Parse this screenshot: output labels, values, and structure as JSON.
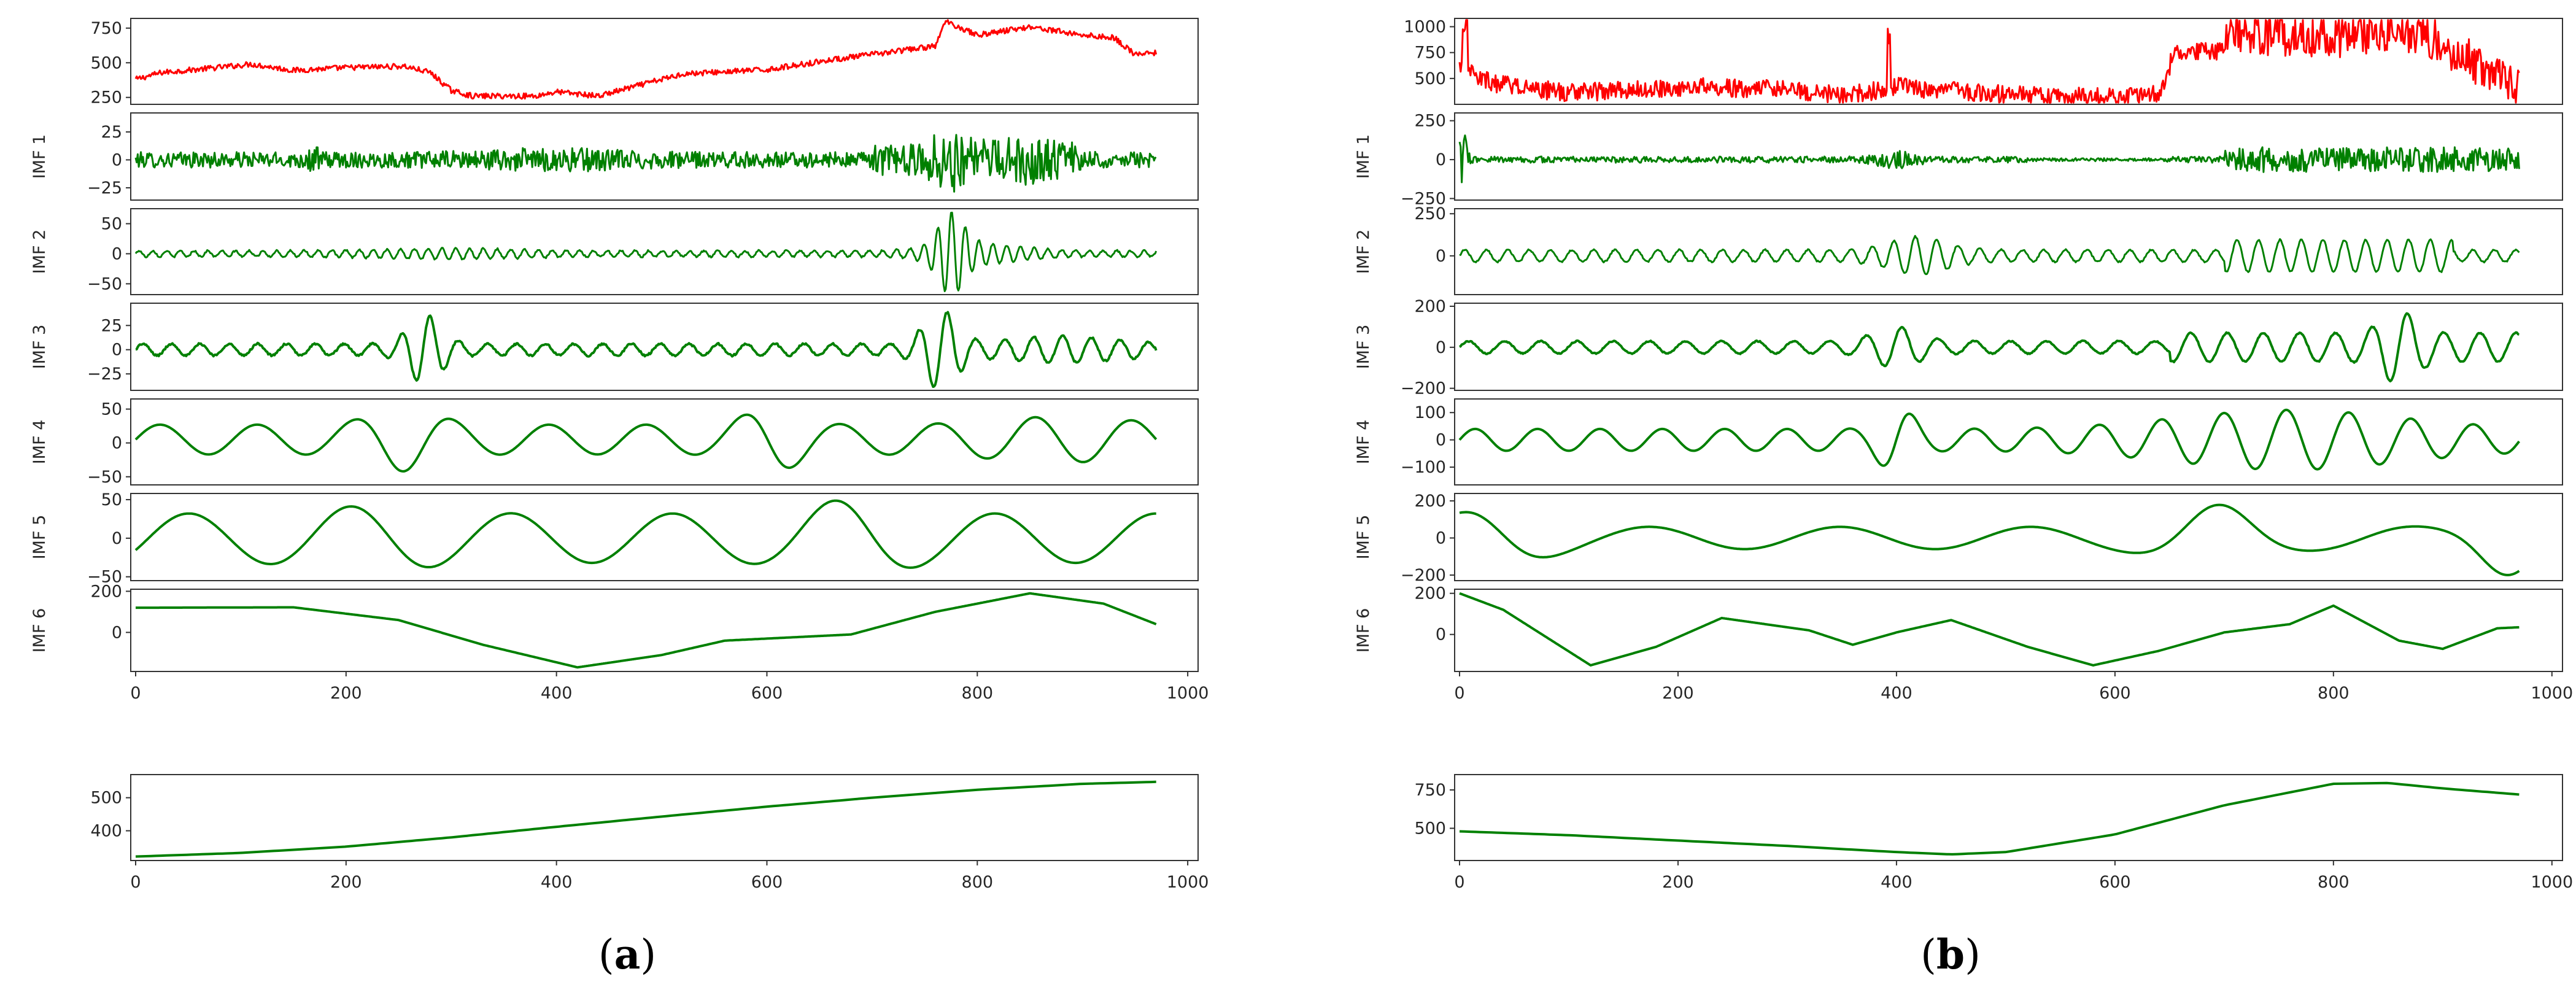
{
  "figure": {
    "caption_a": {
      "open": "(",
      "letter": "a",
      "close": ")"
    },
    "caption_b": {
      "open": "(",
      "letter": "b",
      "close": ")"
    }
  },
  "colors": {
    "signal": "#ff0000",
    "imf": "#008000"
  },
  "chart_data": [
    {
      "id": "a",
      "type": "line",
      "title": "",
      "x_ticks": [
        0,
        200,
        400,
        600,
        800,
        1000
      ],
      "x_range": [
        0,
        970
      ],
      "panels": [
        {
          "kind": "signal",
          "ylabel": "",
          "ylim": [
            200,
            820
          ],
          "yticks": [
            250,
            500,
            750
          ],
          "ytick_labels": [
            "250",
            "500",
            "750"
          ],
          "color": "#ff0000"
        },
        {
          "kind": "imf",
          "ylabel": "IMF 1",
          "ylim": [
            -36,
            42
          ],
          "yticks": [
            -25,
            0,
            25
          ],
          "ytick_labels": [
            "−25",
            "0",
            "25"
          ],
          "color": "#008000"
        },
        {
          "kind": "imf",
          "ylabel": "IMF 2",
          "ylim": [
            -68,
            75
          ],
          "yticks": [
            -50,
            0,
            50
          ],
          "ytick_labels": [
            "−50",
            "0",
            "50"
          ],
          "color": "#008000"
        },
        {
          "kind": "imf",
          "ylabel": "IMF 3",
          "ylim": [
            -42,
            48
          ],
          "yticks": [
            -25,
            0,
            25
          ],
          "ytick_labels": [
            "−25",
            "0",
            "25"
          ],
          "color": "#008000"
        },
        {
          "kind": "imf",
          "ylabel": "IMF 4",
          "ylim": [
            -62,
            65
          ],
          "yticks": [
            -50,
            0,
            50
          ],
          "ytick_labels": [
            "−50",
            "0",
            "50"
          ],
          "color": "#008000"
        },
        {
          "kind": "imf",
          "ylabel": "IMF 5",
          "ylim": [
            -55,
            58
          ],
          "yticks": [
            -50,
            0,
            50
          ],
          "ytick_labels": [
            "−50",
            "0",
            "50"
          ],
          "color": "#008000"
        },
        {
          "kind": "imf",
          "ylabel": "IMF 6",
          "ylim": [
            -190,
            210
          ],
          "yticks": [
            0,
            200
          ],
          "ytick_labels": [
            "0",
            "200"
          ],
          "color": "#008000"
        },
        {
          "kind": "residual",
          "ylabel": "",
          "ylim": [
            310,
            570
          ],
          "yticks": [
            400,
            500
          ],
          "ytick_labels": [
            "400",
            "500"
          ],
          "color": "#008000",
          "x": [
            0,
            100,
            200,
            300,
            400,
            500,
            600,
            700,
            800,
            900,
            970
          ],
          "y": [
            322,
            333,
            352,
            380,
            412,
            443,
            473,
            500,
            524,
            542,
            548
          ]
        }
      ]
    },
    {
      "id": "b",
      "type": "line",
      "title": "",
      "x_ticks": [
        0,
        200,
        400,
        600,
        800,
        1000
      ],
      "x_range": [
        0,
        970
      ],
      "panels": [
        {
          "kind": "signal",
          "ylabel": "",
          "ylim": [
            250,
            1080
          ],
          "yticks": [
            500,
            750,
            1000
          ],
          "ytick_labels": [
            "500",
            "750",
            "1000"
          ],
          "color": "#ff0000"
        },
        {
          "kind": "imf",
          "ylabel": "IMF 1",
          "ylim": [
            -260,
            300
          ],
          "yticks": [
            -250,
            0,
            250
          ],
          "ytick_labels": [
            "−250",
            "0",
            "250"
          ],
          "color": "#008000"
        },
        {
          "kind": "imf",
          "ylabel": "IMF 2",
          "ylim": [
            -230,
            280
          ],
          "yticks": [
            0,
            250
          ],
          "ytick_labels": [
            "0",
            "250"
          ],
          "color": "#008000"
        },
        {
          "kind": "imf",
          "ylabel": "IMF 3",
          "ylim": [
            -210,
            215
          ],
          "yticks": [
            -200,
            0,
            200
          ],
          "ytick_labels": [
            "−200",
            "0",
            "200"
          ],
          "color": "#008000"
        },
        {
          "kind": "imf",
          "ylabel": "IMF 4",
          "ylim": [
            -165,
            150
          ],
          "yticks": [
            -100,
            0,
            100
          ],
          "ytick_labels": [
            "−100",
            "0",
            "100"
          ],
          "color": "#008000"
        },
        {
          "kind": "imf",
          "ylabel": "IMF 5",
          "ylim": [
            -230,
            240
          ],
          "yticks": [
            -200,
            0,
            200
          ],
          "ytick_labels": [
            "−200",
            "0",
            "200"
          ],
          "color": "#008000"
        },
        {
          "kind": "imf",
          "ylabel": "IMF 6",
          "ylim": [
            -180,
            220
          ],
          "yticks": [
            0,
            200
          ],
          "ytick_labels": [
            "0",
            "200"
          ],
          "color": "#008000"
        },
        {
          "kind": "residual",
          "ylabel": "",
          "ylim": [
            290,
            850
          ],
          "yticks": [
            500,
            750
          ],
          "ytick_labels": [
            "500",
            "750"
          ],
          "color": "#008000",
          "x": [
            0,
            100,
            200,
            300,
            400,
            450,
            500,
            600,
            700,
            800,
            850,
            900,
            970
          ],
          "y": [
            480,
            455,
            420,
            385,
            345,
            330,
            345,
            460,
            650,
            790,
            795,
            760,
            720
          ]
        }
      ]
    }
  ]
}
